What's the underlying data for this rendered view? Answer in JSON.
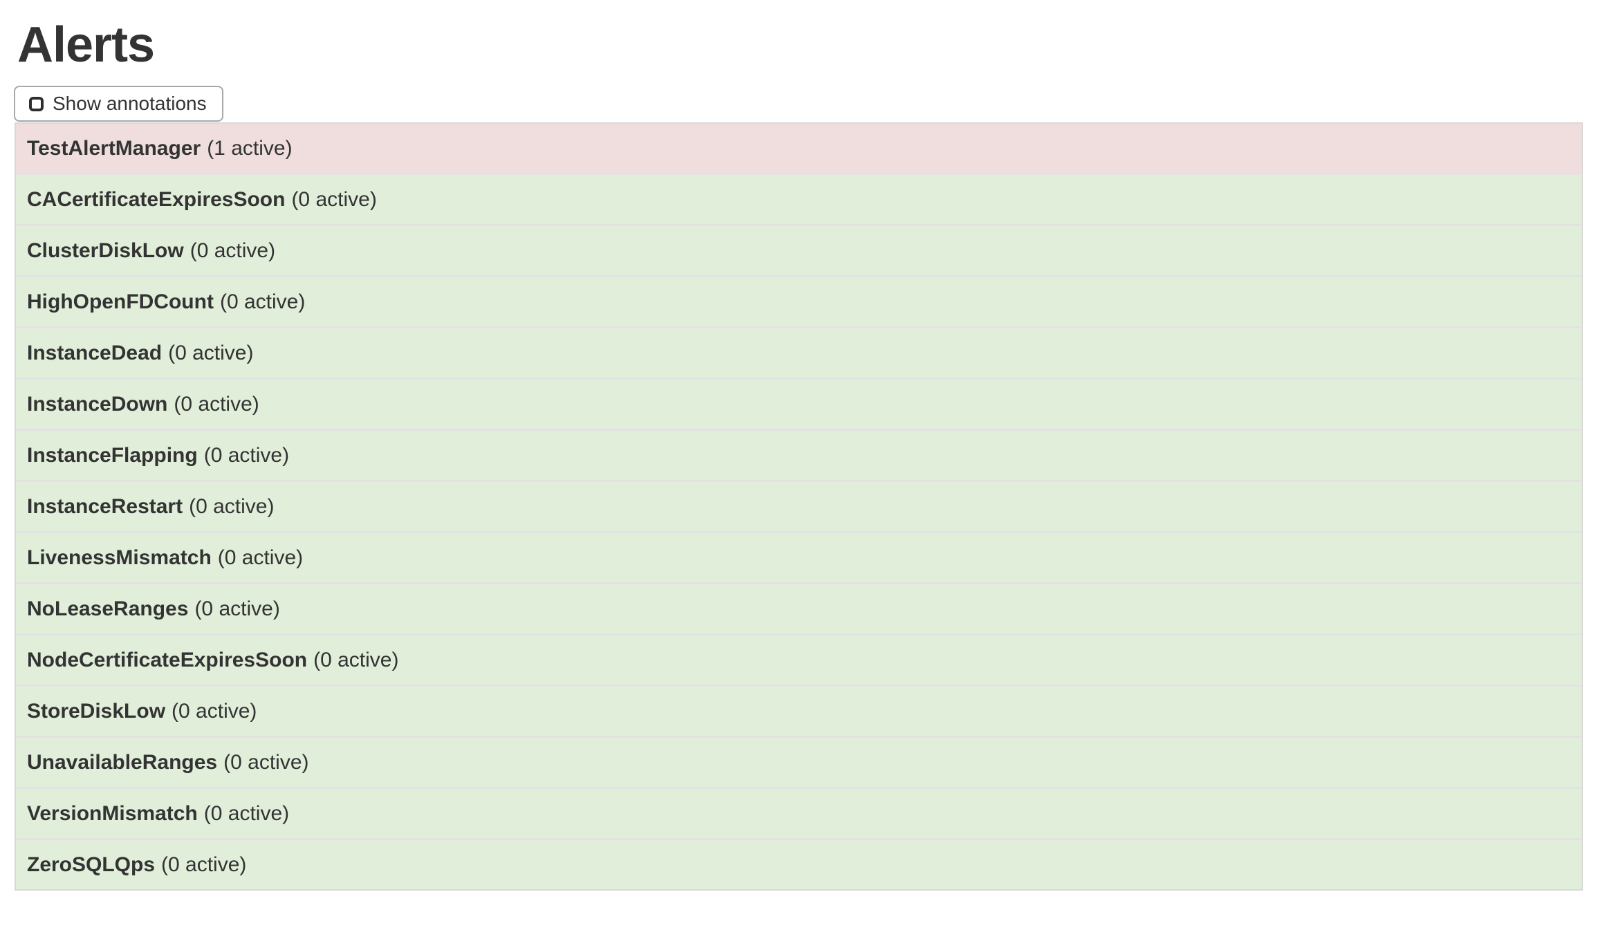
{
  "page": {
    "title": "Alerts"
  },
  "toolbar": {
    "show_annotations": {
      "label": "Show annotations",
      "checked": false
    }
  },
  "alerts": [
    {
      "name": "TestAlertManager",
      "active_count": 1,
      "active_label": "(1 active)",
      "state": "firing"
    },
    {
      "name": "CACertificateExpiresSoon",
      "active_count": 0,
      "active_label": "(0 active)",
      "state": "inactive"
    },
    {
      "name": "ClusterDiskLow",
      "active_count": 0,
      "active_label": "(0 active)",
      "state": "inactive"
    },
    {
      "name": "HighOpenFDCount",
      "active_count": 0,
      "active_label": "(0 active)",
      "state": "inactive"
    },
    {
      "name": "InstanceDead",
      "active_count": 0,
      "active_label": "(0 active)",
      "state": "inactive"
    },
    {
      "name": "InstanceDown",
      "active_count": 0,
      "active_label": "(0 active)",
      "state": "inactive"
    },
    {
      "name": "InstanceFlapping",
      "active_count": 0,
      "active_label": "(0 active)",
      "state": "inactive"
    },
    {
      "name": "InstanceRestart",
      "active_count": 0,
      "active_label": "(0 active)",
      "state": "inactive"
    },
    {
      "name": "LivenessMismatch",
      "active_count": 0,
      "active_label": "(0 active)",
      "state": "inactive"
    },
    {
      "name": "NoLeaseRanges",
      "active_count": 0,
      "active_label": "(0 active)",
      "state": "inactive"
    },
    {
      "name": "NodeCertificateExpiresSoon",
      "active_count": 0,
      "active_label": "(0 active)",
      "state": "inactive"
    },
    {
      "name": "StoreDiskLow",
      "active_count": 0,
      "active_label": "(0 active)",
      "state": "inactive"
    },
    {
      "name": "UnavailableRanges",
      "active_count": 0,
      "active_label": "(0 active)",
      "state": "inactive"
    },
    {
      "name": "VersionMismatch",
      "active_count": 0,
      "active_label": "(0 active)",
      "state": "inactive"
    },
    {
      "name": "ZeroSQLQps",
      "active_count": 0,
      "active_label": "(0 active)",
      "state": "inactive"
    }
  ],
  "colors": {
    "firing_bg": "#f0dede",
    "inactive_bg": "#e1eeda",
    "heading_text": "#333333",
    "row_text": "#333333",
    "row_border": "#e3e3e3",
    "container_border": "#d8d8d8",
    "button_border": "#a8a8a8"
  }
}
